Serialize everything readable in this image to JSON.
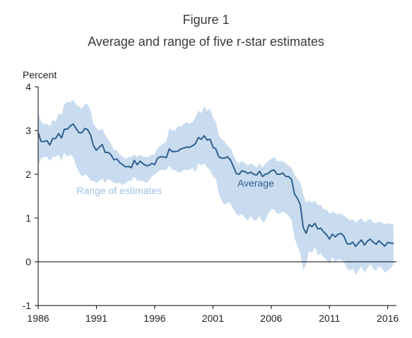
{
  "figure_label": "Figure 1",
  "colors": {
    "average": "#2f5f8f",
    "band": "#c9dcef",
    "band_text": "#9cc0e1",
    "axis": "#000000",
    "zero_line": "#000000"
  },
  "chart_data": {
    "type": "area",
    "title": "Average and range of five r-star estimates",
    "ylabel": "Percent",
    "xlabel": "",
    "xlim": [
      1986,
      2016.75
    ],
    "ylim": [
      -1,
      4
    ],
    "x_ticks": [
      1986,
      1991,
      1996,
      2001,
      2006,
      2011,
      2016
    ],
    "y_ticks": [
      -1,
      0,
      1,
      2,
      3,
      4
    ],
    "grid": false,
    "zero_line": true,
    "annotations": [
      {
        "text": "Average",
        "x": 2003.1,
        "y": 1.72
      },
      {
        "text": "Range of estimates",
        "x": 1989.3,
        "y": 1.55
      }
    ],
    "series": [
      {
        "name": "Average",
        "kind": "line",
        "x": [
          1986,
          1986.25,
          1986.5,
          1986.75,
          1987,
          1987.25,
          1987.5,
          1987.75,
          1988,
          1988.25,
          1988.5,
          1988.75,
          1989,
          1989.25,
          1989.5,
          1989.75,
          1990,
          1990.25,
          1990.5,
          1990.75,
          1991,
          1991.25,
          1991.5,
          1991.75,
          1992,
          1992.25,
          1992.5,
          1992.75,
          1993,
          1993.25,
          1993.5,
          1993.75,
          1994,
          1994.25,
          1994.5,
          1994.75,
          1995,
          1995.25,
          1995.5,
          1995.75,
          1996,
          1996.25,
          1996.5,
          1996.75,
          1997,
          1997.25,
          1997.5,
          1997.75,
          1998,
          1998.25,
          1998.5,
          1998.75,
          1999,
          1999.25,
          1999.5,
          1999.75,
          2000,
          2000.25,
          2000.5,
          2000.75,
          2001,
          2001.25,
          2001.5,
          2001.75,
          2002,
          2002.25,
          2002.5,
          2002.75,
          2003,
          2003.25,
          2003.5,
          2003.75,
          2004,
          2004.25,
          2004.5,
          2004.75,
          2005,
          2005.25,
          2005.5,
          2005.75,
          2006,
          2006.25,
          2006.5,
          2006.75,
          2007,
          2007.25,
          2007.5,
          2007.75,
          2008,
          2008.25,
          2008.5,
          2008.75,
          2009,
          2009.25,
          2009.5,
          2009.75,
          2010,
          2010.25,
          2010.5,
          2010.75,
          2011,
          2011.25,
          2011.5,
          2011.75,
          2012,
          2012.25,
          2012.5,
          2012.75,
          2013,
          2013.25,
          2013.5,
          2013.75,
          2014,
          2014.25,
          2014.5,
          2014.75,
          2015,
          2015.25,
          2015.5,
          2015.75,
          2016,
          2016.25,
          2016.5
        ],
        "values": [
          2.95,
          2.75,
          2.75,
          2.77,
          2.67,
          2.82,
          2.82,
          2.93,
          2.83,
          3.03,
          3.03,
          3.1,
          3.15,
          3.05,
          2.95,
          2.95,
          3.05,
          3.02,
          2.9,
          2.65,
          2.55,
          2.62,
          2.68,
          2.5,
          2.5,
          2.45,
          2.33,
          2.35,
          2.27,
          2.22,
          2.17,
          2.18,
          2.15,
          2.32,
          2.22,
          2.3,
          2.24,
          2.2,
          2.2,
          2.25,
          2.22,
          2.37,
          2.4,
          2.4,
          2.38,
          2.58,
          2.52,
          2.52,
          2.53,
          2.58,
          2.6,
          2.62,
          2.62,
          2.65,
          2.7,
          2.84,
          2.8,
          2.88,
          2.78,
          2.8,
          2.62,
          2.58,
          2.4,
          2.37,
          2.37,
          2.4,
          2.33,
          2.18,
          2.02,
          2.0,
          2.08,
          2.06,
          2.02,
          2.05,
          2.0,
          1.98,
          2.07,
          1.95,
          2.0,
          2.02,
          2.08,
          2.1,
          2.0,
          2.0,
          2.03,
          1.95,
          1.95,
          1.88,
          1.55,
          1.45,
          1.3,
          0.78,
          0.65,
          0.85,
          0.8,
          0.88,
          0.75,
          0.77,
          0.68,
          0.62,
          0.52,
          0.63,
          0.57,
          0.63,
          0.65,
          0.58,
          0.42,
          0.4,
          0.45,
          0.35,
          0.43,
          0.5,
          0.38,
          0.47,
          0.52,
          0.45,
          0.4,
          0.48,
          0.42,
          0.36,
          0.44,
          0.43,
          0.42
        ]
      },
      {
        "name": "Range of estimates",
        "kind": "band",
        "x": [
          1986,
          1986.25,
          1986.5,
          1986.75,
          1987,
          1987.25,
          1987.5,
          1987.75,
          1988,
          1988.25,
          1988.5,
          1988.75,
          1989,
          1989.25,
          1989.5,
          1989.75,
          1990,
          1990.25,
          1990.5,
          1990.75,
          1991,
          1991.25,
          1991.5,
          1991.75,
          1992,
          1992.25,
          1992.5,
          1992.75,
          1993,
          1993.25,
          1993.5,
          1993.75,
          1994,
          1994.25,
          1994.5,
          1994.75,
          1995,
          1995.25,
          1995.5,
          1995.75,
          1996,
          1996.25,
          1996.5,
          1996.75,
          1997,
          1997.25,
          1997.5,
          1997.75,
          1998,
          1998.25,
          1998.5,
          1998.75,
          1999,
          1999.25,
          1999.5,
          1999.75,
          2000,
          2000.25,
          2000.5,
          2000.75,
          2001,
          2001.25,
          2001.5,
          2001.75,
          2002,
          2002.25,
          2002.5,
          2002.75,
          2003,
          2003.25,
          2003.5,
          2003.75,
          2004,
          2004.25,
          2004.5,
          2004.75,
          2005,
          2005.25,
          2005.5,
          2005.75,
          2006,
          2006.25,
          2006.5,
          2006.75,
          2007,
          2007.25,
          2007.5,
          2007.75,
          2008,
          2008.25,
          2008.5,
          2008.75,
          2009,
          2009.25,
          2009.5,
          2009.75,
          2010,
          2010.25,
          2010.5,
          2010.75,
          2011,
          2011.25,
          2011.5,
          2011.75,
          2012,
          2012.25,
          2012.5,
          2012.75,
          2013,
          2013.25,
          2013.5,
          2013.75,
          2014,
          2014.25,
          2014.5,
          2014.75,
          2015,
          2015.25,
          2015.5,
          2015.75,
          2016,
          2016.25,
          2016.5
        ],
        "upper": [
          3.4,
          3.2,
          3.15,
          3.15,
          3.1,
          3.25,
          3.2,
          3.4,
          3.35,
          3.6,
          3.65,
          3.65,
          3.7,
          3.6,
          3.55,
          3.5,
          3.6,
          3.6,
          3.45,
          3.15,
          3.05,
          3.0,
          3.05,
          2.9,
          2.8,
          2.7,
          2.55,
          2.55,
          2.45,
          2.4,
          2.35,
          2.4,
          2.4,
          2.45,
          2.4,
          2.45,
          2.4,
          2.4,
          2.4,
          2.45,
          2.45,
          2.6,
          2.65,
          2.7,
          2.75,
          3.05,
          3.0,
          3.0,
          3.1,
          3.1,
          3.15,
          3.2,
          3.15,
          3.2,
          3.3,
          3.45,
          3.4,
          3.55,
          3.45,
          3.5,
          3.3,
          3.2,
          2.9,
          2.8,
          2.75,
          2.65,
          2.6,
          2.45,
          2.3,
          2.25,
          2.3,
          2.25,
          2.2,
          2.25,
          2.2,
          2.15,
          2.25,
          2.15,
          2.25,
          2.3,
          2.35,
          2.4,
          2.3,
          2.3,
          2.3,
          2.25,
          2.2,
          2.15,
          2.0,
          1.9,
          1.8,
          1.55,
          1.35,
          1.4,
          1.35,
          1.4,
          1.3,
          1.3,
          1.2,
          1.2,
          1.1,
          1.15,
          1.1,
          1.1,
          1.1,
          1.05,
          1.0,
          0.95,
          0.98,
          0.9,
          0.95,
          1.0,
          0.9,
          0.95,
          0.98,
          0.9,
          0.88,
          0.92,
          0.9,
          0.85,
          0.88,
          0.87,
          0.85
        ],
        "lower": [
          2.2,
          2.35,
          2.4,
          2.4,
          2.3,
          2.4,
          2.4,
          2.45,
          2.3,
          2.5,
          2.4,
          2.45,
          2.4,
          2.2,
          2.05,
          1.95,
          2.0,
          1.95,
          1.85,
          1.85,
          1.8,
          1.85,
          1.9,
          1.8,
          1.9,
          1.85,
          1.8,
          1.8,
          1.8,
          1.75,
          1.8,
          1.85,
          1.85,
          1.95,
          1.85,
          1.85,
          1.85,
          1.8,
          1.85,
          1.95,
          2.0,
          2.05,
          2.1,
          2.1,
          2.1,
          2.2,
          2.1,
          2.1,
          2.05,
          2.05,
          2.1,
          2.1,
          2.1,
          2.15,
          2.05,
          2.25,
          2.2,
          2.25,
          2.15,
          2.1,
          1.95,
          1.9,
          1.55,
          1.4,
          1.3,
          1.35,
          1.35,
          1.2,
          1.1,
          1.05,
          1.1,
          1.0,
          0.95,
          1.05,
          0.95,
          0.95,
          1.05,
          0.9,
          0.95,
          1.1,
          1.2,
          1.2,
          1.1,
          1.1,
          1.15,
          1.1,
          1.05,
          0.95,
          0.55,
          0.35,
          0.2,
          -0.2,
          -0.05,
          0.25,
          0.2,
          0.35,
          0.15,
          0.2,
          0.1,
          0.05,
          -0.05,
          0.1,
          0.0,
          0.05,
          0.05,
          0.0,
          -0.15,
          -0.2,
          -0.15,
          -0.3,
          -0.2,
          -0.1,
          -0.25,
          -0.15,
          -0.05,
          -0.15,
          -0.2,
          -0.1,
          -0.15,
          -0.25,
          -0.2,
          -0.15,
          -0.05
        ]
      }
    ]
  }
}
